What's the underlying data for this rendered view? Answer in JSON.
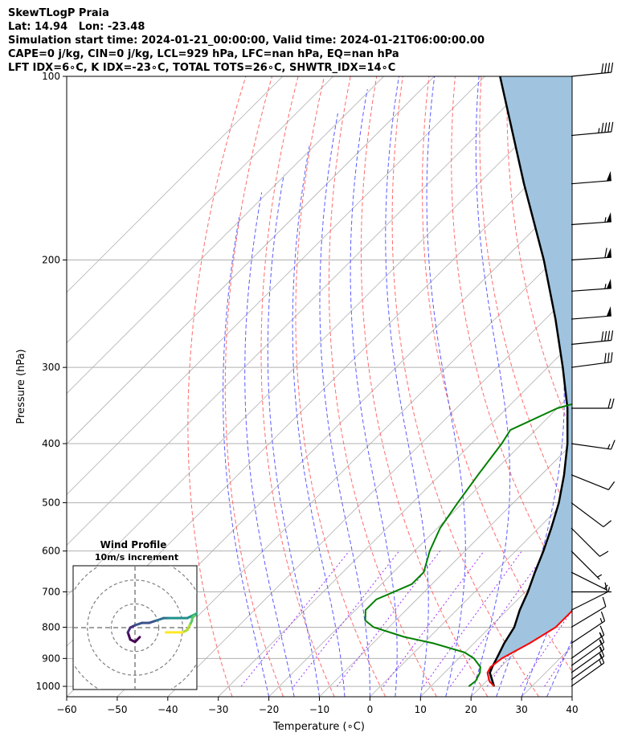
{
  "header": {
    "lines": [
      "SkewTLogP Praia",
      "Lat: 14.94   Lon: -23.48",
      "Simulation start time: 2024-01-21_00:00:00, Valid time: 2024-01-21T06:00:00.00",
      "CAPE=0 j/kg, CIN=0 j/kg, LCL=929 hPa, LFC=nan hPa, EQ=nan hPa",
      "LFT IDX=6∘C, K IDX=-23∘C, TOTAL TOTS=26∘C, SHWTR_IDX=14∘C"
    ]
  },
  "chart_data": {
    "type": "line",
    "skew_log_p": true,
    "xlabel": "Temperature (∘C)",
    "ylabel": "Pressure (hPa)",
    "xlim": [
      -60,
      40
    ],
    "ylim": [
      1040,
      100
    ],
    "xticks": [
      "−60",
      "−50",
      "−40",
      "−30",
      "−20",
      "−10",
      "0",
      "10",
      "20",
      "30",
      "40"
    ],
    "xtick_values": [
      -60,
      -50,
      -40,
      -30,
      -20,
      -10,
      0,
      10,
      20,
      30,
      40
    ],
    "yticks": [
      "1000",
      "900",
      "800",
      "700",
      "600",
      "500",
      "400",
      "300",
      "200",
      "100"
    ],
    "ytick_values": [
      1000,
      900,
      800,
      700,
      600,
      500,
      400,
      300,
      200,
      100
    ],
    "grid": true,
    "colors": {
      "temperature": "#ff0000",
      "dewpoint": "#008000",
      "parcel": "#000000",
      "shade": "#a0c4df",
      "dry_adiabat": "#ff6b6b",
      "moist_adiabat": "#5a5aff",
      "isotherm": "#b0b0b0",
      "mixing_ratio": "#9b30ff"
    },
    "series": [
      {
        "key": "temperature",
        "pressure": [
          1000,
          980,
          950,
          930,
          900,
          850,
          800,
          750,
          700,
          650,
          600,
          550,
          500,
          450,
          400,
          380,
          350,
          300,
          270,
          250,
          200,
          190,
          180,
          160,
          150,
          140,
          130,
          120,
          110,
          100
        ],
        "value": [
          22.5,
          20.5,
          18.5,
          18.0,
          18.5,
          21.0,
          23.0,
          23.0,
          23.0,
          22.0,
          21.0,
          19.0,
          16.5,
          13.0,
          8.5,
          6.0,
          4.5,
          2.0,
          1.5,
          0.0,
          -4.0,
          -8.0,
          -8.0,
          -10.0,
          -11.0,
          -13.0,
          -14.0,
          -16.0,
          -18.0,
          -20.0
        ]
      },
      {
        "key": "dewpoint",
        "pressure": [
          1000,
          980,
          950,
          930,
          900,
          880,
          850,
          830,
          800,
          780,
          750,
          720,
          700,
          680,
          650,
          600,
          550,
          500,
          450,
          400,
          380,
          350,
          330,
          300,
          280,
          250,
          230,
          200,
          180,
          170,
          160,
          150,
          140,
          130,
          120,
          110,
          100
        ],
        "value": [
          17.5,
          17.8,
          17.0,
          16.0,
          13.0,
          10.0,
          2.0,
          -5.0,
          -13.0,
          -16.0,
          -18.0,
          -18.0,
          -16.0,
          -14.0,
          -14.0,
          -17.0,
          -19.5,
          -21.0,
          -22.5,
          -24.0,
          -25.0,
          -20.0,
          -12.0,
          -7.0,
          -7.5,
          -8.5,
          -10.5,
          -12.5,
          -13.5,
          -13.5,
          -14.0,
          -15.0,
          -17.5,
          -19.0,
          -20.5,
          -22.0,
          -23.0
        ]
      },
      {
        "key": "parcel",
        "pressure": [
          1000,
          950,
          929,
          900,
          850,
          800,
          750,
          700,
          650,
          600,
          550,
          500,
          450,
          400,
          350,
          300,
          250,
          200,
          150,
          100
        ],
        "value": [
          22.5,
          19.0,
          18.3,
          17.5,
          16.0,
          14.8,
          12.5,
          10.5,
          8.0,
          5.5,
          2.5,
          -1.0,
          -5.5,
          -11.0,
          -18.0,
          -27.0,
          -38.0,
          -52.0,
          -71.0,
          -97.0
        ]
      }
    ],
    "wind_barbs": {
      "pressure": [
        1000,
        975,
        950,
        925,
        900,
        850,
        800,
        750,
        700,
        650,
        600,
        550,
        500,
        450,
        400,
        350,
        300,
        275,
        250,
        225,
        200,
        175,
        150,
        125,
        100
      ],
      "u": [
        -7,
        -7,
        -7,
        -7,
        -7,
        -6,
        -5,
        -4,
        -3,
        -2,
        -2,
        -3,
        -4,
        -5,
        -7,
        -10,
        -15,
        -20,
        -25,
        -28,
        -30,
        -28,
        -25,
        -22,
        -20
      ],
      "v": [
        -5,
        -5,
        -5,
        -5,
        -5,
        -4,
        -3,
        -2,
        0,
        1,
        2,
        3,
        3,
        2,
        1,
        0,
        -2,
        -2,
        -2,
        -2,
        -2,
        -2,
        -2,
        -2,
        -2
      ]
    },
    "inset": {
      "title": "Wind Profile",
      "subtitle": "10m/s increment",
      "rings": [
        10,
        20,
        30
      ],
      "range": 26,
      "u": [
        2,
        0,
        -2,
        -3,
        -2,
        0,
        3,
        6,
        9,
        12,
        14,
        18,
        22,
        24,
        26,
        25,
        24,
        24,
        23,
        22,
        20,
        16,
        13
      ],
      "v": [
        -4,
        -6,
        -5,
        -2,
        0,
        1,
        2,
        2,
        3,
        4,
        4,
        4,
        4,
        5,
        6,
        5,
        4,
        3,
        1,
        -1,
        -2,
        -2,
        -2
      ]
    }
  }
}
